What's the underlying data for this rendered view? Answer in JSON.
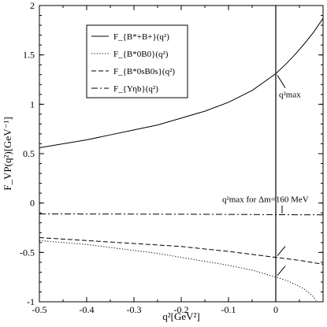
{
  "chart_data": {
    "type": "line",
    "xlabel": "q²[GeV²]",
    "ylabel": "F_VP(q²)[GeV⁻¹]",
    "xlim": [
      -0.5,
      0.1
    ],
    "ylim": [
      -1,
      2
    ],
    "xticks": [
      -0.5,
      -0.4,
      -0.3,
      -0.2,
      -0.1,
      0
    ],
    "yticks": [
      -1,
      -0.5,
      0,
      0.5,
      1,
      1.5,
      2
    ],
    "xtick_labels": [
      "-0.5",
      "-0.4",
      "-0.3",
      "-0.2",
      "-0.1",
      "0"
    ],
    "ytick_labels": [
      "-1",
      "-0.5",
      "0",
      "0.5",
      "1",
      "1.5",
      "2"
    ],
    "grid": false,
    "legend_position": "top-left",
    "series": [
      {
        "name": "F_{B*+B+}(q²)",
        "style": "solid",
        "x": [
          -0.5,
          -0.45,
          -0.4,
          -0.35,
          -0.3,
          -0.25,
          -0.2,
          -0.15,
          -0.1,
          -0.05,
          0,
          0.02,
          0.04,
          0.06,
          0.08,
          0.1
        ],
        "y": [
          0.56,
          0.6,
          0.64,
          0.69,
          0.74,
          0.79,
          0.86,
          0.93,
          1.02,
          1.14,
          1.31,
          1.4,
          1.5,
          1.61,
          1.73,
          1.87
        ]
      },
      {
        "name": "F_{B*0B0}(q²)",
        "style": "dotted",
        "x": [
          -0.5,
          -0.45,
          -0.4,
          -0.35,
          -0.3,
          -0.25,
          -0.2,
          -0.15,
          -0.1,
          -0.05,
          0,
          0.02,
          0.04,
          0.06,
          0.07,
          0.08,
          0.085
        ],
        "y": [
          -0.38,
          -0.4,
          -0.42,
          -0.45,
          -0.48,
          -0.51,
          -0.55,
          -0.59,
          -0.63,
          -0.68,
          -0.75,
          -0.78,
          -0.82,
          -0.87,
          -0.91,
          -0.95,
          -0.99
        ]
      },
      {
        "name": "F_{B*0sB0s}(q²)",
        "style": "dashed",
        "x": [
          -0.5,
          -0.4,
          -0.3,
          -0.2,
          -0.1,
          0,
          0.05,
          0.1
        ],
        "y": [
          -0.35,
          -0.38,
          -0.41,
          -0.44,
          -0.49,
          -0.55,
          -0.58,
          -0.62
        ]
      },
      {
        "name": "F_{Υηb}(q²)",
        "style": "dashdot",
        "x": [
          -0.5,
          -0.3,
          -0.1,
          0,
          0.1
        ],
        "y": [
          -0.11,
          -0.112,
          -0.115,
          -0.118,
          -0.12
        ]
      }
    ],
    "annotations": [
      {
        "text": "q²max",
        "x": 0.0,
        "y": 1.31
      },
      {
        "text": "q²max for Δm=160 MeV",
        "x": 0.0,
        "y": -0.12
      }
    ]
  }
}
